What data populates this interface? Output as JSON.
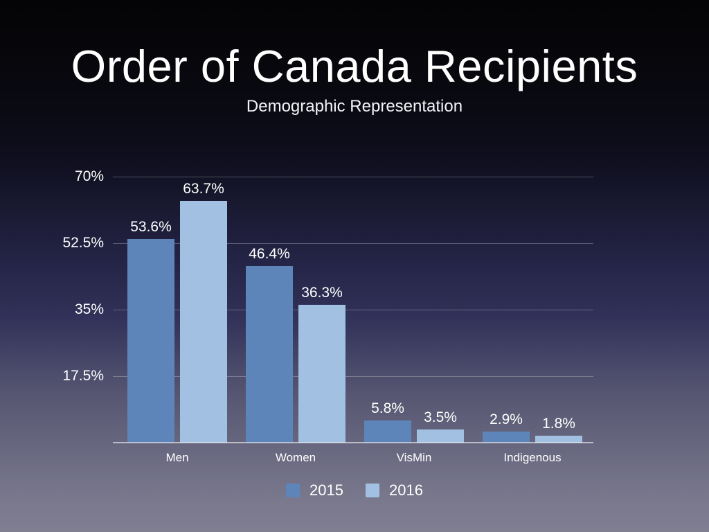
{
  "slide": {
    "title": "Order of Canada Recipients",
    "subtitle": "Demographic Representation"
  },
  "chart_data": {
    "type": "bar",
    "title": "Order of Canada Recipients",
    "subtitle": "Demographic Representation",
    "categories": [
      "Men",
      "Women",
      "VisMin",
      "Indigenous"
    ],
    "series": [
      {
        "name": "2015",
        "color": "#5d85ba",
        "values": [
          53.6,
          46.4,
          5.8,
          2.9
        ],
        "labels": [
          "53.6%",
          "46.4%",
          "5.8%",
          "2.9%"
        ]
      },
      {
        "name": "2016",
        "color": "#a1c0e2",
        "values": [
          63.7,
          36.3,
          3.5,
          1.8
        ],
        "labels": [
          "63.7%",
          "36.3%",
          "3.5%",
          "1.8%"
        ]
      }
    ],
    "y_ticks": [
      {
        "label": "70%",
        "value": 70
      },
      {
        "label": "52.5%",
        "value": 52.5
      },
      {
        "label": "35%",
        "value": 35
      },
      {
        "label": "17.5%",
        "value": 17.5
      }
    ],
    "ylim": [
      0,
      70
    ],
    "grid": true,
    "legend_position": "bottom",
    "text_color": "#ffffff"
  }
}
